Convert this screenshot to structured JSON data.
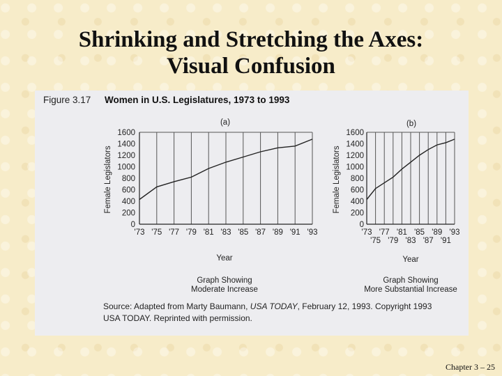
{
  "slide": {
    "title_line1": "Shrinking and Stretching the Axes:",
    "title_line2": "Visual Confusion",
    "number": "Chapter 3 – 25"
  },
  "figure": {
    "label": "Figure 3.17",
    "title": "Women in U.S. Legislatures, 1973 to 1993",
    "source_prefix": "Source: Adapted from Marty Baumann, ",
    "source_pub": "USA TODAY",
    "source_rest": ", February 12, 1993. Copyright 1993",
    "source_line2": "USA TODAY. Reprinted with permission."
  },
  "chart_data": [
    {
      "type": "line",
      "panel": "(a)",
      "title": "Women in U.S. Legislatures, 1973 to 1993",
      "xlabel": "Year",
      "ylabel": "Female Legislators",
      "caption_line1": "Graph Showing",
      "caption_line2": "Moderate Increase",
      "x_tick_labels": [
        "'73",
        "'75",
        "'77",
        "'79",
        "'81",
        "'83",
        "'85",
        "'87",
        "'89",
        "'91",
        "'93"
      ],
      "x_ticks": [
        1973,
        1975,
        1977,
        1979,
        1981,
        1983,
        1985,
        1987,
        1989,
        1991,
        1993
      ],
      "y_ticks": [
        0,
        200,
        400,
        600,
        800,
        1000,
        1200,
        1400,
        1600
      ],
      "ylim": [
        0,
        1600
      ],
      "xlim": [
        1973,
        1993
      ],
      "grid": "vertical",
      "x": [
        1973,
        1975,
        1977,
        1979,
        1981,
        1983,
        1985,
        1987,
        1989,
        1991,
        1993
      ],
      "y": [
        430,
        650,
        740,
        820,
        970,
        1080,
        1170,
        1260,
        1330,
        1360,
        1480
      ]
    },
    {
      "type": "line",
      "panel": "(b)",
      "xlabel": "Year",
      "ylabel": "Female Legislators",
      "caption_line1": "Graph Showing",
      "caption_line2": "More Substantial Increase",
      "x_tick_labels_top": [
        "'73",
        "'77",
        "'81",
        "'85",
        "'89",
        "'93"
      ],
      "x_tick_labels_bottom": [
        "'75",
        "'79",
        "'83",
        "'87",
        "'91"
      ],
      "x_ticks_top": [
        1973,
        1977,
        1981,
        1985,
        1989,
        1993
      ],
      "x_ticks_bottom": [
        1975,
        1979,
        1983,
        1987,
        1991
      ],
      "y_ticks": [
        0,
        200,
        400,
        600,
        800,
        1000,
        1200,
        1400,
        1600
      ],
      "ylim": [
        0,
        1600
      ],
      "xlim": [
        1973,
        1993
      ],
      "grid": "vertical",
      "x": [
        1973,
        1975,
        1977,
        1979,
        1981,
        1983,
        1985,
        1987,
        1989,
        1991,
        1993
      ],
      "y": [
        430,
        620,
        720,
        820,
        960,
        1080,
        1200,
        1300,
        1380,
        1420,
        1480
      ]
    }
  ]
}
